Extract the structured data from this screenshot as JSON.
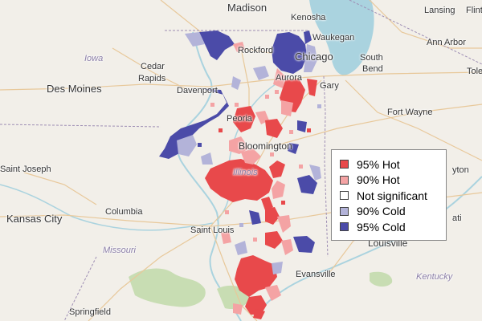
{
  "places": [
    {
      "id": "madison",
      "label": "Madison"
    },
    {
      "id": "kenosha",
      "label": "Kenosha"
    },
    {
      "id": "waukegan",
      "label": "Waukegan"
    },
    {
      "id": "lansing",
      "label": "Lansing"
    },
    {
      "id": "flint",
      "label": "Flint"
    },
    {
      "id": "rockford",
      "label": "Rockford"
    },
    {
      "id": "chicago",
      "label": "Chicago"
    },
    {
      "id": "ann-arbor",
      "label": "Ann Arbor"
    },
    {
      "id": "iowa",
      "label": "Iowa"
    },
    {
      "id": "cedar-rapids-1",
      "label": "Cedar"
    },
    {
      "id": "cedar-rapids-2",
      "label": "Rapids"
    },
    {
      "id": "south-bend-1",
      "label": "South"
    },
    {
      "id": "south-bend-2",
      "label": "Bend"
    },
    {
      "id": "toledo",
      "label": "Tole"
    },
    {
      "id": "des-moines",
      "label": "Des Moines"
    },
    {
      "id": "davenport",
      "label": "Davenport"
    },
    {
      "id": "aurora",
      "label": "Aurora"
    },
    {
      "id": "gary",
      "label": "Gary"
    },
    {
      "id": "fort-wayne",
      "label": "Fort Wayne"
    },
    {
      "id": "peoria",
      "label": "Peoria"
    },
    {
      "id": "bloomington",
      "label": "Bloomington"
    },
    {
      "id": "saint-joseph",
      "label": "Saint Joseph"
    },
    {
      "id": "illinois",
      "label": "Illinois"
    },
    {
      "id": "dayton",
      "label": "yton"
    },
    {
      "id": "kansas-city",
      "label": "Kansas City"
    },
    {
      "id": "columbia",
      "label": "Columbia"
    },
    {
      "id": "cincinnati",
      "label": "ati"
    },
    {
      "id": "saint-louis",
      "label": "Saint Louis"
    },
    {
      "id": "louisville",
      "label": "Louisville"
    },
    {
      "id": "missouri",
      "label": "Missouri"
    },
    {
      "id": "evansville",
      "label": "Evansville"
    },
    {
      "id": "kentucky",
      "label": "Kentucky"
    },
    {
      "id": "springfield",
      "label": "Springfield"
    }
  ],
  "legend": {
    "items": [
      {
        "label": "95% Hot",
        "color": "#e8494b"
      },
      {
        "label": "90% Hot",
        "color": "#f4a3a4"
      },
      {
        "label": "Not significant",
        "color": "#ffffff"
      },
      {
        "label": "90% Cold",
        "color": "#b3b3d9"
      },
      {
        "label": "95% Cold",
        "color": "#4b4ba8"
      }
    ]
  },
  "colors": {
    "land": "#f2efe9",
    "water": "#aad3df",
    "forest": "#c8ddb3",
    "road": "#e8c89a",
    "border": "#9e8eb4",
    "hot95": "#e8494b",
    "hot90": "#f4a3a4",
    "cold90": "#b3b3d9",
    "cold95": "#4b4ba8"
  }
}
